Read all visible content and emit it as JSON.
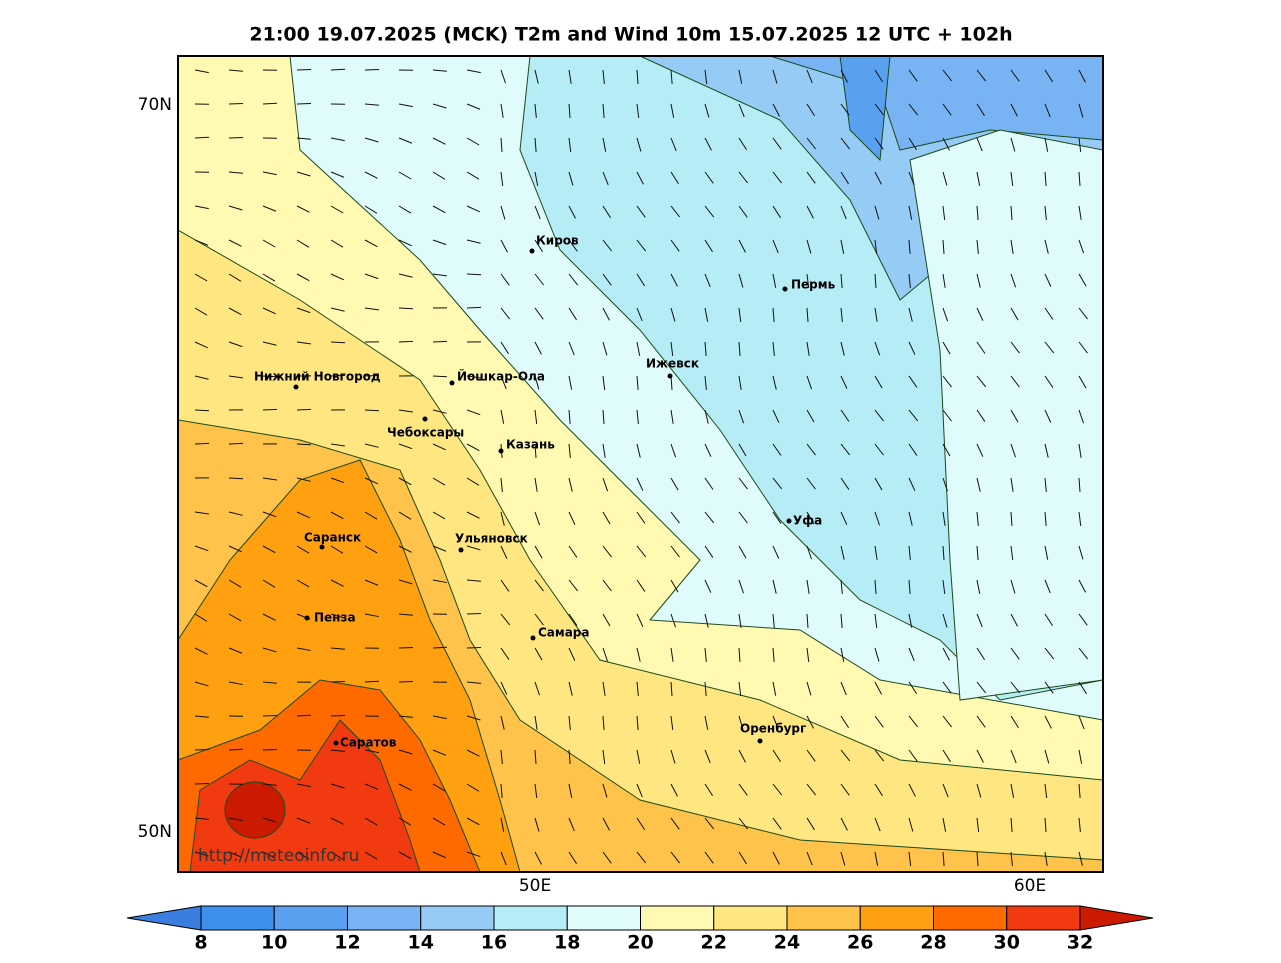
{
  "title": "21:00 19.07.2025 (MCK) T2m and Wind 10m 15.07.2025 12 UTC + 102h",
  "map": {
    "lat_labels": [
      "70N",
      "50N"
    ],
    "lon_labels": [
      "50E",
      "60E"
    ],
    "source": "http://meteoinfo.ru",
    "cities": [
      "Киров",
      "Пермь",
      "Нижний Новгород",
      "Йошкар-Ола",
      "Ижевск",
      "Чебоксары",
      "Казань",
      "Уфа",
      "Саранск",
      "Ульяновск",
      "Пенза",
      "Самара",
      "Оренбург",
      "Саратов"
    ]
  },
  "colorbar": {
    "levels": [
      8,
      10,
      12,
      14,
      16,
      18,
      20,
      22,
      24,
      26,
      28,
      30,
      32
    ],
    "colors": [
      "#3a7fe0",
      "#3f8fec",
      "#5aa0f0",
      "#78b4f4",
      "#96cbf6",
      "#b6ecf6",
      "#e0fbfb",
      "#fff9b2",
      "#ffe680",
      "#ffc24a",
      "#ffa010",
      "#ff6a00",
      "#f23a10",
      "#cc1a00"
    ]
  }
}
